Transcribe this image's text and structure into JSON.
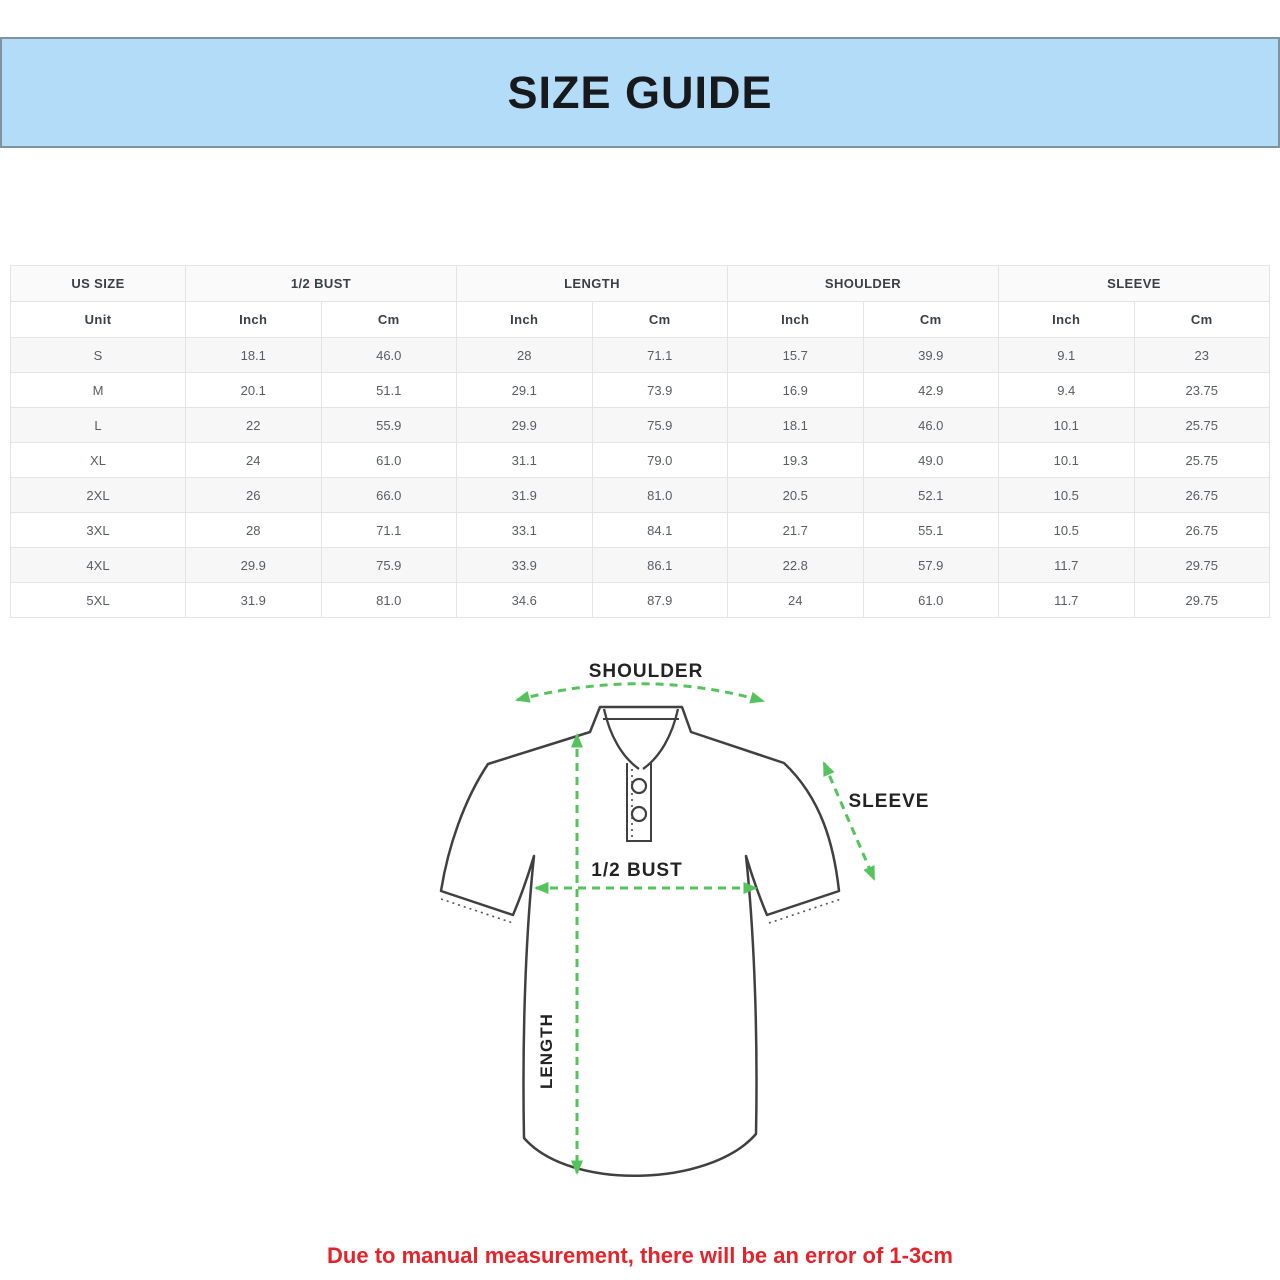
{
  "banner": {
    "title": "SIZE GUIDE"
  },
  "colors": {
    "banner_bg": "#b2dcf8",
    "banner_border": "#8093a0",
    "arrow_green": "#54c35b",
    "alt_row_bg": "#f7f7f7",
    "footnote_red": "#e5232b"
  },
  "table": {
    "group_headers": [
      "US SIZE",
      "1/2 BUST",
      "LENGTH",
      "SHOULDER",
      "SLEEVE"
    ],
    "unit_headers": [
      "Unit",
      "Inch",
      "Cm",
      "Inch",
      "Cm",
      "Inch",
      "Cm",
      "Inch",
      "Cm"
    ],
    "rows": [
      {
        "size": "S",
        "values": [
          "18.1",
          "46.0",
          "28",
          "71.1",
          "15.7",
          "39.9",
          "9.1",
          "23"
        ]
      },
      {
        "size": "M",
        "values": [
          "20.1",
          "51.1",
          "29.1",
          "73.9",
          "16.9",
          "42.9",
          "9.4",
          "23.75"
        ]
      },
      {
        "size": "L",
        "values": [
          "22",
          "55.9",
          "29.9",
          "75.9",
          "18.1",
          "46.0",
          "10.1",
          "25.75"
        ]
      },
      {
        "size": "XL",
        "values": [
          "24",
          "61.0",
          "31.1",
          "79.0",
          "19.3",
          "49.0",
          "10.1",
          "25.75"
        ]
      },
      {
        "size": "2XL",
        "values": [
          "26",
          "66.0",
          "31.9",
          "81.0",
          "20.5",
          "52.1",
          "10.5",
          "26.75"
        ]
      },
      {
        "size": "3XL",
        "values": [
          "28",
          "71.1",
          "33.1",
          "84.1",
          "21.7",
          "55.1",
          "10.5",
          "26.75"
        ]
      },
      {
        "size": "4XL",
        "values": [
          "29.9",
          "75.9",
          "33.9",
          "86.1",
          "22.8",
          "57.9",
          "11.7",
          "29.75"
        ]
      },
      {
        "size": "5XL",
        "values": [
          "31.9",
          "81.0",
          "34.6",
          "87.9",
          "24",
          "61.0",
          "11.7",
          "29.75"
        ]
      }
    ]
  },
  "diagram": {
    "shoulder_label": "SHOULDER",
    "sleeve_label": "SLEEVE",
    "bust_label": "1/2 BUST",
    "length_label": "LENGTH"
  },
  "footnote": {
    "text": "Due to manual measurement, there will be an error of 1-3cm"
  }
}
